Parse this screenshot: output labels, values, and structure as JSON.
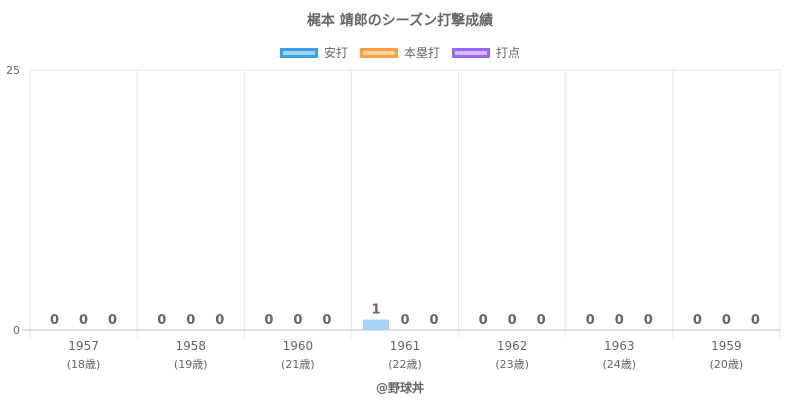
{
  "title": "梶本 靖郎のシーズン打撃成績",
  "source": "@野球丼",
  "legend": [
    {
      "name": "安打",
      "fill": "#a6d3f5",
      "stroke": "#36a2eb"
    },
    {
      "name": "本塁打",
      "fill": "#ffd0a0",
      "stroke": "#ff9f40"
    },
    {
      "name": "打点",
      "fill": "#d4bdfc",
      "stroke": "#9966ff"
    }
  ],
  "chart_data": {
    "type": "bar",
    "title": "梶本 靖郎のシーズン打撃成績",
    "categories": [
      "1957",
      "1958",
      "1960",
      "1961",
      "1962",
      "1963",
      "1959"
    ],
    "category_sublabels": [
      "(18歳)",
      "(19歳)",
      "(21歳)",
      "(22歳)",
      "(23歳)",
      "(24歳)",
      "(20歳)"
    ],
    "series": [
      {
        "name": "安打",
        "values": [
          0,
          0,
          0,
          1,
          0,
          0,
          0
        ],
        "color": "#a6d3f5"
      },
      {
        "name": "本塁打",
        "values": [
          0,
          0,
          0,
          0,
          0,
          0,
          0
        ],
        "color": "#ffd0a0"
      },
      {
        "name": "打点",
        "values": [
          0,
          0,
          0,
          0,
          0,
          0,
          0
        ],
        "color": "#d4bdfc"
      }
    ],
    "ylim": [
      0,
      25
    ],
    "y_ticks": [
      "0",
      "25"
    ],
    "grid": true,
    "legend_position": "top"
  }
}
